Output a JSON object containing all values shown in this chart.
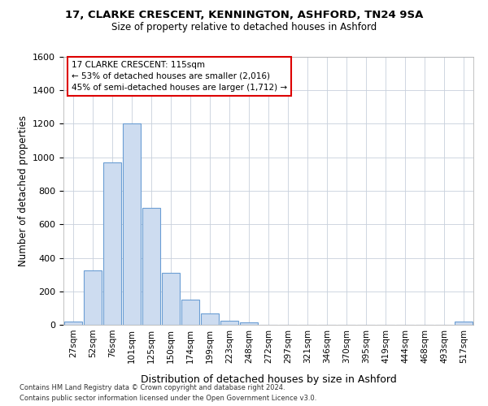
{
  "title1": "17, CLARKE CRESCENT, KENNINGTON, ASHFORD, TN24 9SA",
  "title2": "Size of property relative to detached houses in Ashford",
  "xlabel": "Distribution of detached houses by size in Ashford",
  "ylabel": "Number of detached properties",
  "categories": [
    "27sqm",
    "52sqm",
    "76sqm",
    "101sqm",
    "125sqm",
    "150sqm",
    "174sqm",
    "199sqm",
    "223sqm",
    "248sqm",
    "272sqm",
    "297sqm",
    "321sqm",
    "346sqm",
    "370sqm",
    "395sqm",
    "419sqm",
    "444sqm",
    "468sqm",
    "493sqm",
    "517sqm"
  ],
  "values": [
    20,
    325,
    970,
    1200,
    700,
    310,
    150,
    70,
    25,
    15,
    0,
    0,
    0,
    0,
    0,
    0,
    0,
    0,
    0,
    0,
    20
  ],
  "bar_color": "#cddcf0",
  "bar_edge_color": "#6b9ed4",
  "grid_color": "#c8d0dc",
  "background_color": "#ffffff",
  "annotation_line1": "17 CLARKE CRESCENT: 115sqm",
  "annotation_line2": "← 53% of detached houses are smaller (2,016)",
  "annotation_line3": "45% of semi-detached houses are larger (1,712) →",
  "annotation_box_color": "#dd0000",
  "ylim": [
    0,
    1600
  ],
  "yticks": [
    0,
    200,
    400,
    600,
    800,
    1000,
    1200,
    1400,
    1600
  ],
  "footnote1": "Contains HM Land Registry data © Crown copyright and database right 2024.",
  "footnote2": "Contains public sector information licensed under the Open Government Licence v3.0."
}
